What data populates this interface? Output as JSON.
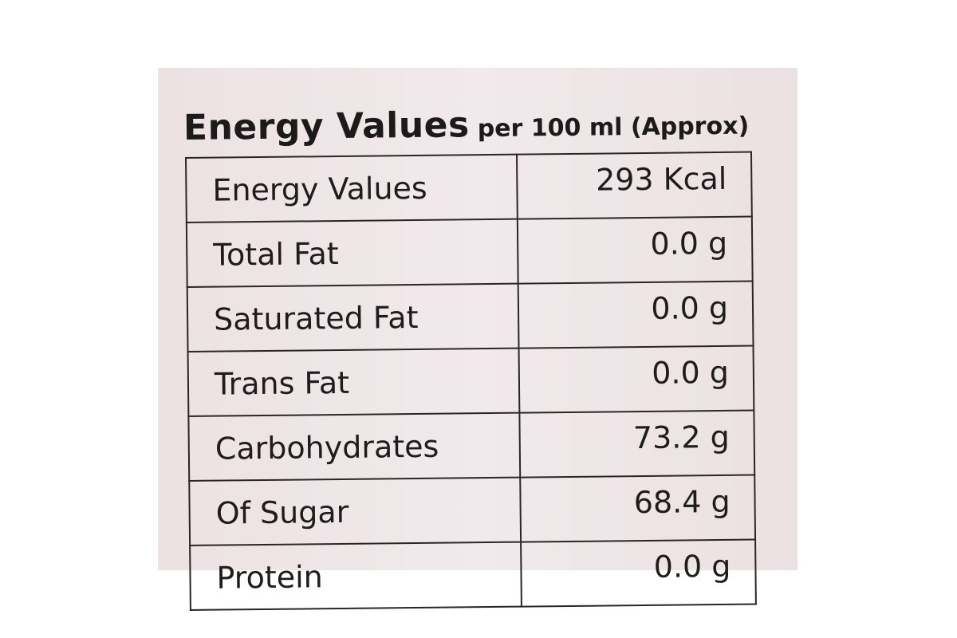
{
  "header": {
    "title": "Energy Values",
    "subtitle": "per 100 ml (Approx)"
  },
  "table": {
    "rows": [
      [
        "Energy Values",
        "293 Kcal"
      ],
      [
        "Total Fat",
        "0.0 g"
      ],
      [
        "Saturated Fat",
        "0.0 g"
      ],
      [
        "Trans Fat",
        "0.0 g"
      ],
      [
        "Carbohydrates",
        "73.2 g"
      ],
      [
        "Of Sugar",
        "68.4 g"
      ],
      [
        "Protein",
        "0.0 g"
      ]
    ]
  }
}
